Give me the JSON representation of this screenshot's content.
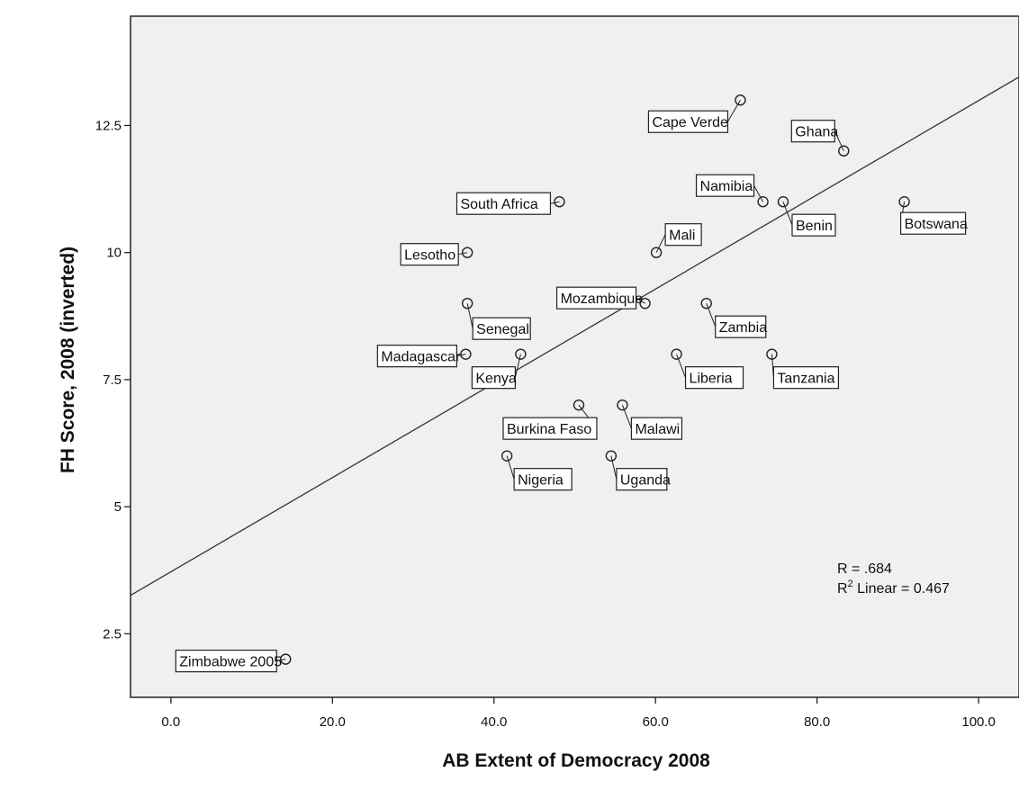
{
  "chart_data": {
    "type": "scatter",
    "title": "",
    "xlabel": "AB Extent of Democracy 2008",
    "ylabel": "FH Score, 2008 (inverted)",
    "xlim": [
      -5,
      105
    ],
    "ylim": [
      1.25,
      14.65
    ],
    "x_ticks": [
      0,
      20,
      40,
      60,
      80,
      100
    ],
    "x_tick_labels": [
      "0.0",
      "20.0",
      "40.0",
      "60.0",
      "80.0",
      "100.0"
    ],
    "y_ticks": [
      2.5,
      5,
      7.5,
      10,
      12.5
    ],
    "y_tick_labels": [
      "2.5",
      "5",
      "7.5",
      "10",
      "12.5"
    ],
    "grid": false,
    "background": "#f0f0f0",
    "points": [
      {
        "label": "Cape Verde",
        "x": 70.5,
        "y": 13
      },
      {
        "label": "Ghana",
        "x": 83.3,
        "y": 12
      },
      {
        "label": "South Africa",
        "x": 48.1,
        "y": 11
      },
      {
        "label": "Namibia",
        "x": 73.3,
        "y": 11
      },
      {
        "label": "Benin",
        "x": 75.8,
        "y": 11
      },
      {
        "label": "Botswana",
        "x": 90.8,
        "y": 11
      },
      {
        "label": "Lesotho",
        "x": 36.7,
        "y": 10
      },
      {
        "label": "Mali",
        "x": 60.1,
        "y": 10
      },
      {
        "label": "Senegal",
        "x": 36.7,
        "y": 9
      },
      {
        "label": "Mozambique",
        "x": 58.7,
        "y": 9
      },
      {
        "label": "Zambia",
        "x": 66.3,
        "y": 9
      },
      {
        "label": "Madagascar",
        "x": 36.5,
        "y": 8
      },
      {
        "label": "Kenya",
        "x": 43.3,
        "y": 8
      },
      {
        "label": "Liberia",
        "x": 62.6,
        "y": 8
      },
      {
        "label": "Tanzania",
        "x": 74.4,
        "y": 8
      },
      {
        "label": "Burkina Faso",
        "x": 50.5,
        "y": 7
      },
      {
        "label": "Malawi",
        "x": 55.9,
        "y": 7
      },
      {
        "label": "Nigeria",
        "x": 41.6,
        "y": 6
      },
      {
        "label": "Uganda",
        "x": 54.5,
        "y": 6
      },
      {
        "label": "Zimbabwe 2005",
        "x": 14.2,
        "y": 2
      }
    ],
    "fit_line": {
      "intercept": 3.72,
      "slope": 0.0927
    },
    "annotations": {
      "r_text": "R = .684",
      "r2_prefix": "R",
      "r2_superscript": "2",
      "r2_suffix": " Linear = 0.467"
    }
  }
}
